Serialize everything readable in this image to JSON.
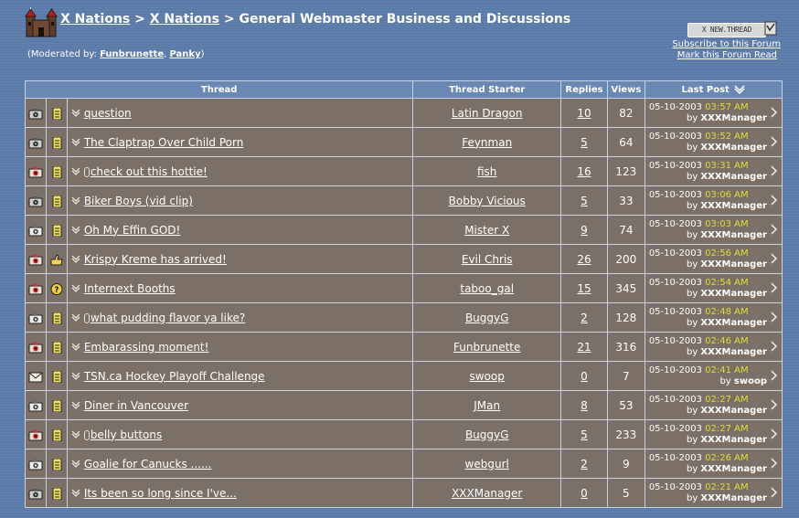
{
  "breadcrumb": {
    "root": "X Nations",
    "sep1": ">",
    "parent": "X Nations",
    "sep2": ">",
    "current": "General Webmaster Business and Discussions"
  },
  "moderators": {
    "prefix": "(Moderated by:",
    "mod1": "Funbrunette",
    "comma": ",",
    "mod2": "Panky",
    "suffix": ")"
  },
  "actions": {
    "new_thread": "X NEW.THREAD",
    "subscribe": "Subscribe to this Forum",
    "mark_read": "Mark this Forum Read"
  },
  "headers": {
    "thread": "Thread",
    "starter": "Thread Starter",
    "replies": "Replies",
    "views": "Views",
    "last_post": "Last Post"
  },
  "threads": [
    {
      "icon": "camera-icon",
      "emo": "note-icon",
      "clip": false,
      "title": "question",
      "starter": "Latin Dragon",
      "replies": "10",
      "views": "82",
      "date": "05-10-2003",
      "time": "03:57 AM",
      "by": "by",
      "last_by": "XXXManager"
    },
    {
      "icon": "camera-icon",
      "emo": "note-icon",
      "clip": false,
      "title": "The Claptrap Over Child Porn",
      "starter": "Feynman",
      "replies": "5",
      "views": "64",
      "date": "05-10-2003",
      "time": "03:52 AM",
      "by": "by",
      "last_by": "XXXManager"
    },
    {
      "icon": "camera-hot-icon",
      "emo": "note-icon",
      "clip": true,
      "title": "check out this hottie!",
      "starter": "fish",
      "replies": "16",
      "views": "123",
      "date": "05-10-2003",
      "time": "03:31 AM",
      "by": "by",
      "last_by": "XXXManager"
    },
    {
      "icon": "camera-icon",
      "emo": "note-icon",
      "clip": false,
      "title": "Biker Boys (vid clip)",
      "starter": "Bobby Vicious",
      "replies": "5",
      "views": "33",
      "date": "05-10-2003",
      "time": "03:06 AM",
      "by": "by",
      "last_by": "XXXManager"
    },
    {
      "icon": "camera-new-icon",
      "emo": "note-icon",
      "clip": false,
      "title": "Oh My Effin GOD!",
      "starter": "Mister X",
      "replies": "9",
      "views": "74",
      "date": "05-10-2003",
      "time": "03:03 AM",
      "by": "by",
      "last_by": "XXXManager"
    },
    {
      "icon": "camera-hot-icon",
      "emo": "thumbs-up-icon",
      "clip": false,
      "title": "Krispy Kreme has arrived!",
      "starter": "Evil Chris",
      "replies": "26",
      "views": "200",
      "date": "05-10-2003",
      "time": "02:56 AM",
      "by": "by",
      "last_by": "XXXManager"
    },
    {
      "icon": "camera-hot-icon",
      "emo": "question-icon",
      "clip": false,
      "title": "Internext Booths",
      "starter": "taboo_gal",
      "replies": "15",
      "views": "345",
      "date": "05-10-2003",
      "time": "02:54 AM",
      "by": "by",
      "last_by": "XXXManager"
    },
    {
      "icon": "camera-new-icon",
      "emo": "note-icon",
      "clip": true,
      "title": "what pudding flavor ya like?",
      "starter": "BuggyG",
      "replies": "2",
      "views": "128",
      "date": "05-10-2003",
      "time": "02:48 AM",
      "by": "by",
      "last_by": "XXXManager"
    },
    {
      "icon": "camera-hot-icon",
      "emo": "note-icon",
      "clip": false,
      "title": "Embarassing moment!",
      "starter": "Funbrunette",
      "replies": "21",
      "views": "316",
      "date": "05-10-2003",
      "time": "02:46 AM",
      "by": "by",
      "last_by": "XXXManager"
    },
    {
      "icon": "envelope-icon",
      "emo": "note-icon",
      "clip": false,
      "title": "TSN.ca Hockey Playoff Challenge",
      "starter": "swoop",
      "replies": "0",
      "views": "7",
      "date": "05-10-2003",
      "time": "02:41 AM",
      "by": "by",
      "last_by": "swoop"
    },
    {
      "icon": "camera-new-icon",
      "emo": "note-icon",
      "clip": false,
      "title": "Diner in Vancouver",
      "starter": "JMan",
      "replies": "8",
      "views": "53",
      "date": "05-10-2003",
      "time": "02:27 AM",
      "by": "by",
      "last_by": "XXXManager"
    },
    {
      "icon": "camera-hot-icon",
      "emo": "note-icon",
      "clip": true,
      "title": "belly buttons",
      "starter": "BuggyG",
      "replies": "5",
      "views": "233",
      "date": "05-10-2003",
      "time": "02:27 AM",
      "by": "by",
      "last_by": "XXXManager"
    },
    {
      "icon": "camera-new-icon",
      "emo": "note-icon",
      "clip": false,
      "title": "Goalie for Canucks ......",
      "starter": "webgurl",
      "replies": "2",
      "views": "9",
      "date": "05-10-2003",
      "time": "02:26 AM",
      "by": "by",
      "last_by": "XXXManager"
    },
    {
      "icon": "camera-icon",
      "emo": "note-icon",
      "clip": false,
      "title": "Its been so long since I've...",
      "starter": "XXXManager",
      "replies": "0",
      "views": "5",
      "date": "05-10-2003",
      "time": "02:21 AM",
      "by": "by",
      "last_by": "XXXManager"
    }
  ],
  "colors": {
    "background": "#5a7aa8",
    "header": "#6a88b4",
    "row": "#7a7068",
    "time": "#d4e034"
  }
}
